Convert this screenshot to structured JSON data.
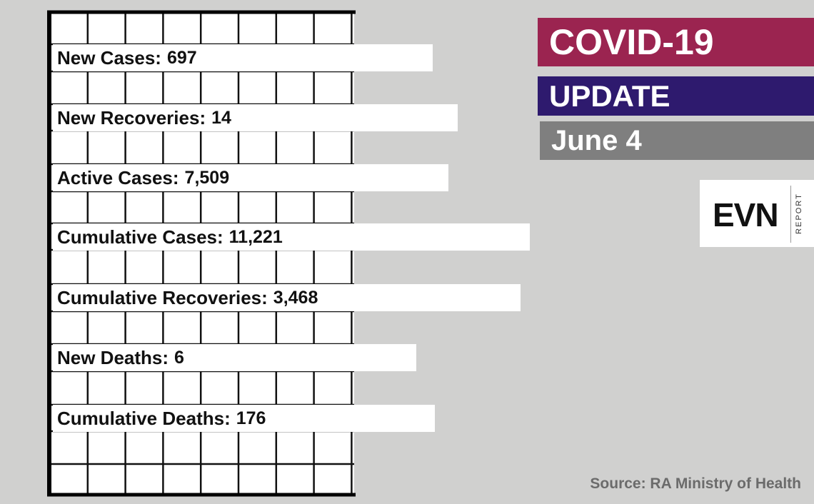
{
  "header": {
    "title": "COVID-19",
    "subtitle": "UPDATE",
    "date": "June 4"
  },
  "logo": {
    "name": "EVN",
    "tagline": "REPORT"
  },
  "stats": [
    {
      "label": "New Cases:",
      "value": "697"
    },
    {
      "label": "New Recoveries:",
      "value": "14"
    },
    {
      "label": "Active Cases:",
      "value": "7,509"
    },
    {
      "label": "Cumulative Cases:",
      "value": "11,221"
    },
    {
      "label": "Cumulative Recoveries:",
      "value": "3,468"
    },
    {
      "label": "New Deaths:",
      "value": "6"
    },
    {
      "label": "Cumulative Deaths:",
      "value": "176"
    }
  ],
  "source": "Source: RA Ministry of Health"
}
